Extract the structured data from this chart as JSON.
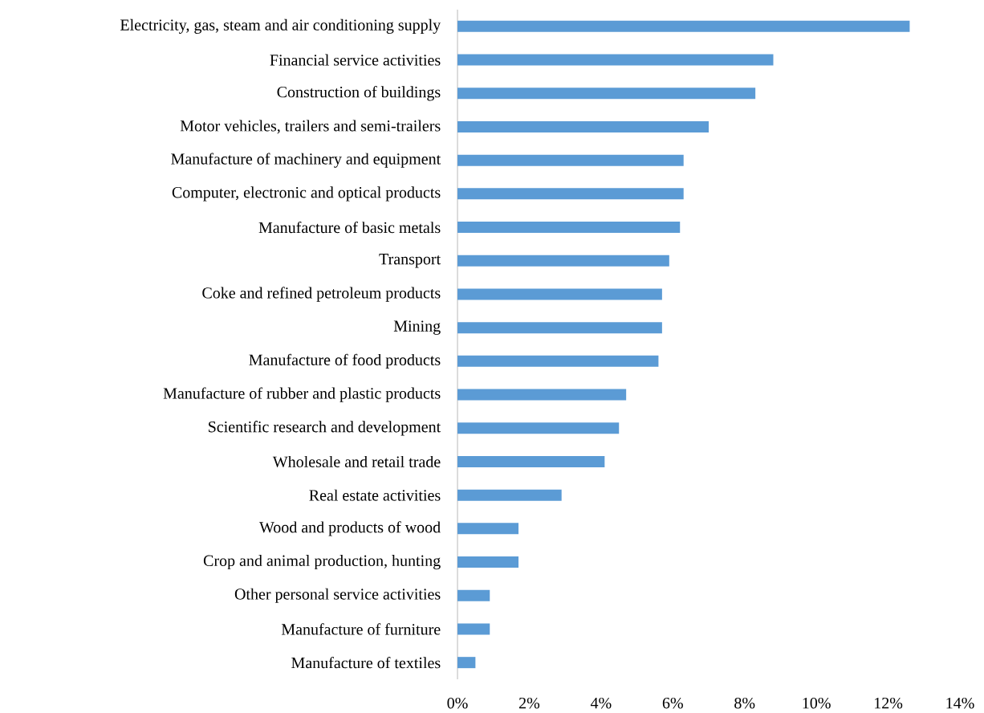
{
  "chart_data": {
    "type": "bar",
    "orientation": "horizontal",
    "categories": [
      "Electricity, gas, steam and air conditioning supply",
      "Financial service activities",
      "Construction of buildings",
      "Motor vehicles, trailers and semi-trailers",
      "Manufacture of machinery and equipment",
      "Computer, electronic and optical products",
      "Manufacture of basic metals",
      "Transport",
      "Coke and refined petroleum products",
      "Mining",
      "Manufacture of food products",
      "Manufacture of rubber and plastic products",
      "Scientific research and development",
      "Wholesale and retail trade",
      "Real estate activities",
      "Wood and products of wood",
      "Crop and animal production, hunting",
      "Other personal service activities",
      "Manufacture of furniture",
      "Manufacture of textiles"
    ],
    "values": [
      12.6,
      8.8,
      8.3,
      7.0,
      6.3,
      6.3,
      6.2,
      5.9,
      5.7,
      5.7,
      5.6,
      4.7,
      4.5,
      4.1,
      2.9,
      1.7,
      1.7,
      0.9,
      0.9,
      0.5
    ],
    "color": "#5b9bd5",
    "xlim": [
      0,
      14
    ],
    "xticks": [
      {
        "value": 0,
        "label": "0%"
      },
      {
        "value": 2,
        "label": "2%"
      },
      {
        "value": 4,
        "label": "4%"
      },
      {
        "value": 6,
        "label": "6%"
      },
      {
        "value": 8,
        "label": "8%"
      },
      {
        "value": 10,
        "label": "10%"
      },
      {
        "value": 12,
        "label": "12%"
      },
      {
        "value": 14,
        "label": "14%"
      }
    ]
  }
}
